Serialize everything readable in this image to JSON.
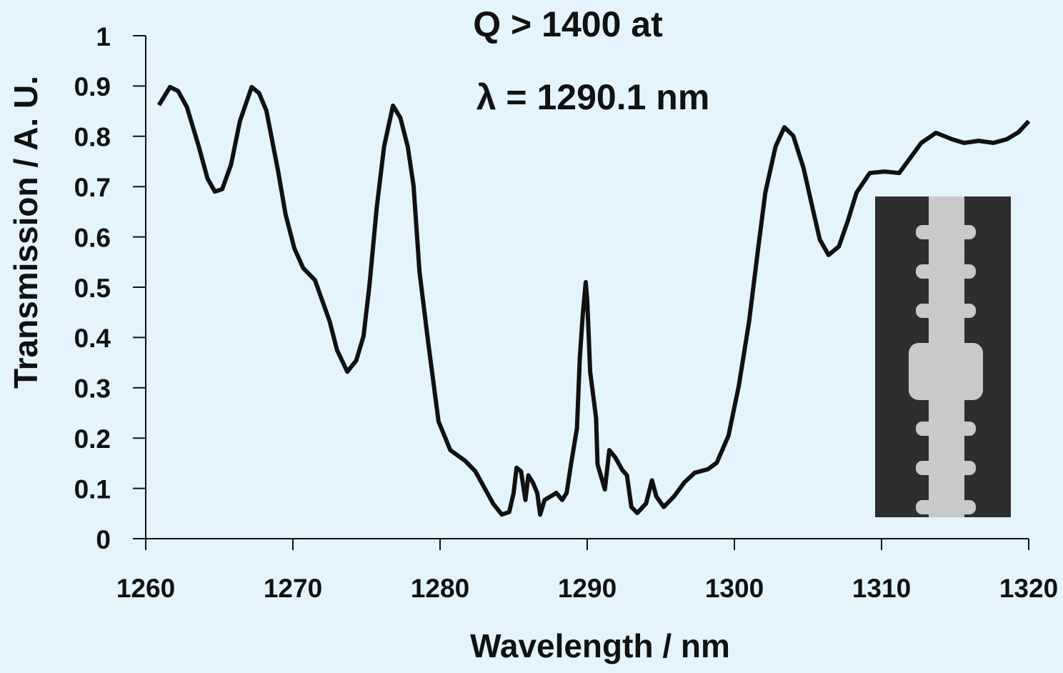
{
  "chart_data": {
    "type": "line",
    "annotations": [
      "Q > 1400 at",
      "λ = 1290.1 nm"
    ],
    "x_label": "Wavelength / nm",
    "y_label": "Transmission / A. U.",
    "xlim": [
      1260,
      1320
    ],
    "xticks": [
      1260,
      1270,
      1280,
      1290,
      1300,
      1310,
      1320
    ],
    "ylim": [
      0,
      1
    ],
    "yticks": [
      0,
      0.1,
      0.2,
      0.3,
      0.4,
      0.5,
      0.6,
      0.7,
      0.8,
      0.9,
      1
    ],
    "color": "#111111",
    "x": [
      1260.9,
      1261.65,
      1262.2,
      1262.8,
      1263.6,
      1264.2,
      1264.7,
      1265.2,
      1265.8,
      1266.4,
      1267.2,
      1267.7,
      1268.2,
      1269.0,
      1269.5,
      1270.1,
      1270.7,
      1271.5,
      1272.5,
      1273.0,
      1273.7,
      1274.3,
      1274.8,
      1275.2,
      1275.7,
      1276.2,
      1276.8,
      1277.3,
      1277.8,
      1278.2,
      1278.6,
      1279.2,
      1279.9,
      1280.7,
      1281.7,
      1282.4,
      1283.6,
      1284.2,
      1284.7,
      1285.0,
      1285.2,
      1285.5,
      1285.8,
      1286.0,
      1286.3,
      1286.6,
      1286.8,
      1287.1,
      1287.5,
      1287.9,
      1288.3,
      1288.6,
      1288.9,
      1289.3,
      1289.5,
      1289.7,
      1289.9,
      1290.0,
      1290.1,
      1290.2,
      1290.6,
      1290.7,
      1291.2,
      1291.5,
      1291.9,
      1292.4,
      1292.7,
      1293.0,
      1293.4,
      1294.0,
      1294.4,
      1294.7,
      1295.2,
      1295.9,
      1296.6,
      1297.3,
      1298.2,
      1298.8,
      1299.6,
      1300.3,
      1301.0,
      1301.6,
      1302.1,
      1302.8,
      1303.4,
      1304.0,
      1304.7,
      1305.3,
      1305.8,
      1306.4,
      1307.1,
      1307.7,
      1308.3,
      1309.2,
      1310.2,
      1311.2,
      1311.8,
      1312.7,
      1313.7,
      1314.8,
      1315.6,
      1316.6,
      1317.6,
      1318.5,
      1319.3,
      1320.0
    ],
    "values": [
      0.862,
      0.898,
      0.89,
      0.858,
      0.78,
      0.716,
      0.69,
      0.695,
      0.744,
      0.83,
      0.898,
      0.886,
      0.851,
      0.73,
      0.645,
      0.577,
      0.538,
      0.514,
      0.432,
      0.375,
      0.332,
      0.354,
      0.403,
      0.503,
      0.659,
      0.78,
      0.861,
      0.837,
      0.78,
      0.702,
      0.531,
      0.389,
      0.233,
      0.176,
      0.155,
      0.134,
      0.07,
      0.048,
      0.053,
      0.091,
      0.141,
      0.134,
      0.077,
      0.126,
      0.112,
      0.091,
      0.048,
      0.077,
      0.084,
      0.091,
      0.077,
      0.091,
      0.148,
      0.219,
      0.361,
      0.446,
      0.51,
      0.474,
      0.403,
      0.332,
      0.24,
      0.148,
      0.098,
      0.176,
      0.162,
      0.136,
      0.126,
      0.063,
      0.051,
      0.07,
      0.116,
      0.084,
      0.063,
      0.084,
      0.112,
      0.131,
      0.138,
      0.151,
      0.205,
      0.304,
      0.432,
      0.574,
      0.688,
      0.78,
      0.818,
      0.801,
      0.737,
      0.659,
      0.595,
      0.564,
      0.581,
      0.631,
      0.688,
      0.727,
      0.73,
      0.727,
      0.751,
      0.787,
      0.807,
      0.794,
      0.787,
      0.791,
      0.787,
      0.794,
      0.808,
      0.83
    ]
  }
}
